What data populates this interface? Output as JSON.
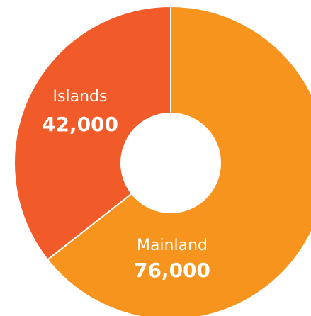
{
  "chart_data": {
    "type": "donut",
    "categories": [
      "Mainland",
      "Islands"
    ],
    "values": [
      76000,
      42000
    ],
    "value_labels": [
      "76,000",
      "42,000"
    ],
    "colors": [
      "#f7941d",
      "#f15a29"
    ]
  }
}
